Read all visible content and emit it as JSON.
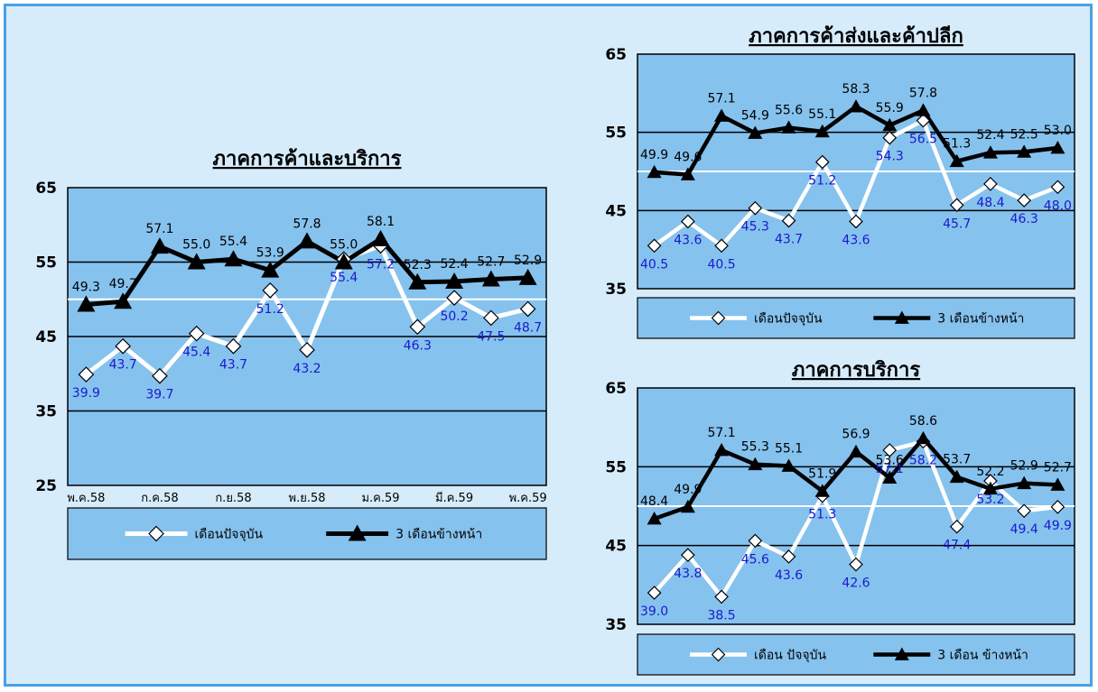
{
  "colors": {
    "background": "#d6ecfb",
    "plot_area": "#86c2ee",
    "current_line": "#ffffff",
    "forward_line": "#000000",
    "current_label": "#1a1acc",
    "forward_label": "#000000",
    "border": "#4aa0e6"
  },
  "chart_data": [
    {
      "type": "line",
      "title": "ภาคการค้าและบริการ",
      "ylim": [
        25,
        65
      ],
      "yticks": [
        25,
        35,
        45,
        55,
        65
      ],
      "reference_line": 50,
      "grid": true,
      "legend_placement": "bottom",
      "x_tick_labels": [
        "พ.ค.58",
        "ก.ค.58",
        "ก.ย.58",
        "พ.ย.58",
        "ม.ค.59",
        "มี.ค.59",
        "พ.ค.59"
      ],
      "x_count": 13,
      "series": [
        {
          "name": "เดือนปัจจุบัน",
          "values": [
            39.9,
            43.7,
            39.7,
            45.4,
            43.7,
            51.2,
            43.2,
            55.4,
            57.2,
            46.3,
            50.2,
            47.5,
            48.7
          ]
        },
        {
          "name": "3 เดือนข้างหน้า",
          "values": [
            49.3,
            49.7,
            57.1,
            55.0,
            55.4,
            53.9,
            57.8,
            55.0,
            58.1,
            52.3,
            52.4,
            52.7,
            52.9
          ]
        }
      ]
    },
    {
      "type": "line",
      "title": "ภาคการค้าส่งและค้าปลีก",
      "ylim": [
        35,
        65
      ],
      "yticks": [
        35,
        45,
        55,
        65
      ],
      "reference_line": 50,
      "grid": true,
      "legend_placement": "bottom",
      "x_count": 13,
      "series": [
        {
          "name": "เดือนปัจจุบัน",
          "values": [
            40.5,
            43.6,
            40.5,
            45.3,
            43.7,
            51.2,
            43.6,
            54.3,
            56.5,
            45.7,
            48.4,
            46.3,
            48.0
          ]
        },
        {
          "name": "3 เดือนข้างหน้า",
          "values": [
            49.9,
            49.6,
            57.1,
            54.9,
            55.6,
            55.1,
            58.3,
            55.9,
            57.8,
            51.3,
            52.4,
            52.5,
            53.0
          ]
        }
      ]
    },
    {
      "type": "line",
      "title": "ภาคการบริการ",
      "ylim": [
        35,
        65
      ],
      "yticks": [
        35,
        45,
        55,
        65
      ],
      "reference_line": 50,
      "grid": true,
      "legend_placement": "bottom",
      "x_count": 13,
      "series": [
        {
          "name": "เดือน ปัจจุบัน",
          "values": [
            39.0,
            43.8,
            38.5,
            45.6,
            43.6,
            51.3,
            42.6,
            57.1,
            58.2,
            47.4,
            53.2,
            49.4,
            49.9
          ]
        },
        {
          "name": "3 เดือน ข้างหน้า",
          "values": [
            48.4,
            49.9,
            57.1,
            55.3,
            55.1,
            51.9,
            56.9,
            53.6,
            58.6,
            53.7,
            52.2,
            52.9,
            52.7
          ]
        }
      ]
    }
  ]
}
